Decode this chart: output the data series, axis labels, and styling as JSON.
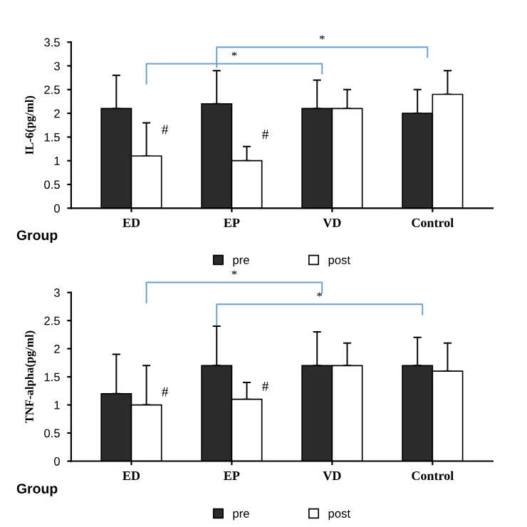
{
  "chart_data": [
    {
      "type": "bar",
      "xlabel": "Group",
      "ylabel": "IL-6(pg/ml)",
      "categories": [
        "ED",
        "EP",
        "VD",
        "Control"
      ],
      "ylim": [
        0,
        3.5
      ],
      "yticks": [
        0,
        0.5,
        1,
        1.5,
        2,
        2.5,
        3,
        3.5
      ],
      "legend": "bottom",
      "grid": false,
      "series": [
        {
          "name": "pre",
          "color": "#2b2b2b",
          "values": [
            2.1,
            2.2,
            2.1,
            2.0
          ],
          "errors": [
            [
              2.1,
              2.8
            ],
            [
              2.2,
              2.9
            ],
            [
              2.1,
              2.7
            ],
            [
              2.0,
              2.5
            ]
          ]
        },
        {
          "name": "post",
          "color": "#ffffff",
          "values": [
            1.1,
            1.0,
            2.1,
            2.4
          ],
          "errors": [
            [
              1.1,
              1.8
            ],
            [
              1.0,
              1.3
            ],
            [
              2.1,
              2.5
            ],
            [
              2.4,
              2.9
            ]
          ]
        }
      ],
      "annotations": [
        {
          "text": "#",
          "x": "ED",
          "y": 1.5
        },
        {
          "text": "#",
          "x": "EP",
          "y": 1.4
        },
        "*",
        "*"
      ]
    },
    {
      "type": "bar",
      "xlabel": "Group",
      "ylabel": "TNF-alpha(pg/ml)",
      "categories": [
        "ED",
        "EP",
        "VD",
        "Control"
      ],
      "ylim": [
        0,
        3
      ],
      "yticks": [
        0,
        0.5,
        1,
        1.5,
        2,
        2.5,
        3
      ],
      "legend": "bottom",
      "grid": false,
      "series": [
        {
          "name": "pre",
          "color": "#2b2b2b",
          "values": [
            1.2,
            1.7,
            1.7,
            1.7
          ],
          "errors": [
            [
              1.2,
              1.9
            ],
            [
              1.7,
              2.4
            ],
            [
              1.7,
              2.3
            ],
            [
              1.7,
              2.2
            ]
          ]
        },
        {
          "name": "post",
          "color": "#ffffff",
          "values": [
            1.0,
            1.1,
            1.7,
            1.6
          ],
          "errors": [
            [
              1.0,
              1.7
            ],
            [
              1.1,
              1.4
            ],
            [
              1.7,
              2.1
            ],
            [
              1.6,
              2.1
            ]
          ]
        }
      ],
      "annotations": [
        {
          "text": "#",
          "x": "ED",
          "y": 1.1
        },
        {
          "text": "#",
          "x": "EP",
          "y": 1.2
        },
        "*",
        "*"
      ]
    }
  ]
}
